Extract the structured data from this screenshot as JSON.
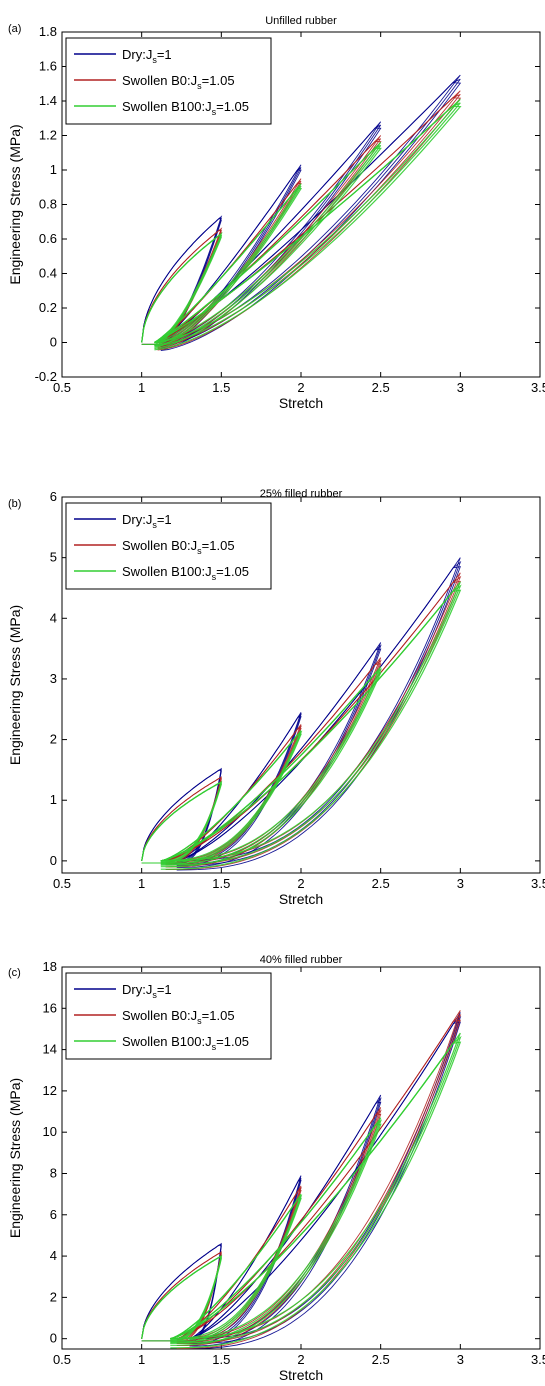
{
  "chart_data": [
    {
      "type": "line",
      "panel_label": "(a)",
      "title": "Unfilled rubber",
      "xlabel": "Stretch",
      "ylabel": "Engineering Stress (MPa)",
      "xlim": [
        0.5,
        3.5
      ],
      "ylim": [
        -0.2,
        1.8
      ],
      "xticks": [
        "0.5",
        "1",
        "1.5",
        "2",
        "2.5",
        "3",
        "3.5"
      ],
      "yticks": [
        "-0.2",
        "0",
        "0.2",
        "0.4",
        "0.6",
        "0.8",
        "1",
        "1.2",
        "1.4",
        "1.6",
        "1.8"
      ],
      "grid": false,
      "legend_position": "top-left",
      "max_stretches": [
        1.5,
        2.0,
        2.5,
        3.0
      ],
      "series": [
        {
          "label_main": "Dry:J",
          "label_sub": "s",
          "label_tail": "=1",
          "color": "#00008b",
          "peak_values": [
            0.73,
            1.03,
            1.28,
            1.55
          ],
          "unload_end": [
            1.12,
            1.12,
            1.12,
            1.12
          ]
        },
        {
          "label_main": "Swollen B0:J",
          "label_sub": "s",
          "label_tail": "=1.05",
          "color": "#b22222",
          "peak_values": [
            0.66,
            0.95,
            1.2,
            1.46
          ],
          "unload_end": [
            1.1,
            1.1,
            1.1,
            1.1
          ]
        },
        {
          "label_main": "Swollen B100:J",
          "label_sub": "s",
          "label_tail": "=1.05",
          "color": "#32cd32",
          "peak_values": [
            0.63,
            0.92,
            1.16,
            1.41
          ],
          "unload_end": [
            1.08,
            1.08,
            1.08,
            1.08
          ]
        }
      ]
    },
    {
      "type": "line",
      "panel_label": "(b)",
      "title": "25% filled rubber",
      "xlabel": "Stretch",
      "ylabel": "Engineering Stress (MPa)",
      "xlim": [
        0.5,
        3.5
      ],
      "ylim": [
        -0.2,
        6
      ],
      "xticks": [
        "0.5",
        "1",
        "1.5",
        "2",
        "2.5",
        "3",
        "3.5"
      ],
      "yticks": [
        "0",
        "1",
        "2",
        "3",
        "4",
        "5",
        "6"
      ],
      "grid": false,
      "legend_position": "top-left",
      "max_stretches": [
        1.5,
        2.0,
        2.5,
        3.0
      ],
      "series": [
        {
          "label_main": "Dry:J",
          "label_sub": "s",
          "label_tail": "=1",
          "color": "#00008b",
          "peak_values": [
            1.52,
            2.45,
            3.6,
            5.0
          ],
          "unload_end": [
            1.22,
            1.22,
            1.22,
            1.22
          ]
        },
        {
          "label_main": "Swollen B0:J",
          "label_sub": "s",
          "label_tail": "=1.05",
          "color": "#b22222",
          "peak_values": [
            1.38,
            2.25,
            3.35,
            4.75
          ],
          "unload_end": [
            1.15,
            1.15,
            1.15,
            1.15
          ]
        },
        {
          "label_main": "Swollen B100:J",
          "label_sub": "s",
          "label_tail": "=1.05",
          "color": "#32cd32",
          "peak_values": [
            1.3,
            2.15,
            3.2,
            4.6
          ],
          "unload_end": [
            1.12,
            1.12,
            1.12,
            1.12
          ]
        }
      ]
    },
    {
      "type": "line",
      "panel_label": "(c)",
      "title": "40% filled rubber",
      "xlabel": "Stretch",
      "ylabel": "Engineering Stress (MPa)",
      "xlim": [
        0.5,
        3.5
      ],
      "ylim": [
        -0.5,
        18
      ],
      "xticks": [
        "0.5",
        "1",
        "1.5",
        "2",
        "2.5",
        "3",
        "3.5"
      ],
      "yticks": [
        "0",
        "2",
        "4",
        "6",
        "8",
        "10",
        "12",
        "14",
        "16",
        "18"
      ],
      "grid": false,
      "legend_position": "top-left",
      "max_stretches": [
        1.5,
        2.0,
        2.5,
        3.0
      ],
      "series": [
        {
          "label_main": "Dry:J",
          "label_sub": "s",
          "label_tail": "=1",
          "color": "#00008b",
          "peak_values": [
            4.6,
            7.9,
            11.8,
            15.8
          ],
          "unload_end": [
            1.3,
            1.3,
            1.3,
            1.3
          ]
        },
        {
          "label_main": "Swollen B0:J",
          "label_sub": "s",
          "label_tail": "=1.05",
          "color": "#b22222",
          "peak_values": [
            4.2,
            7.4,
            11.2,
            15.9
          ],
          "unload_end": [
            1.22,
            1.22,
            1.22,
            1.22
          ]
        },
        {
          "label_main": "Swollen B100:J",
          "label_sub": "s",
          "label_tail": "=1.05",
          "color": "#32cd32",
          "peak_values": [
            4.0,
            7.0,
            10.7,
            14.8
          ],
          "unload_end": [
            1.18,
            1.18,
            1.18,
            1.18
          ]
        }
      ]
    }
  ]
}
